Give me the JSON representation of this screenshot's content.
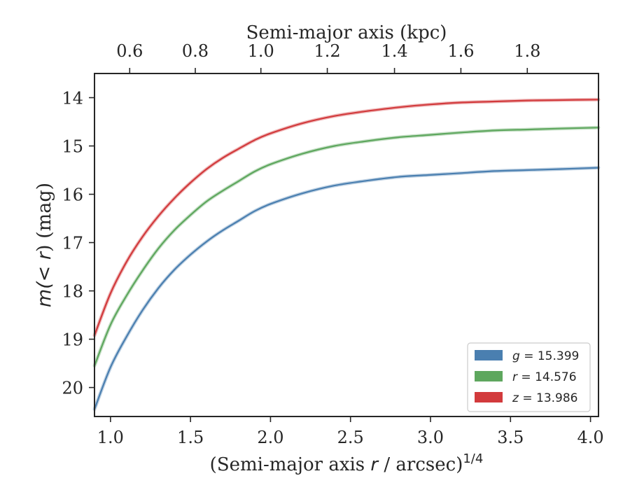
{
  "chart_data": {
    "type": "line",
    "xlabel_pre": "(Semi-major axis ",
    "xlabel_var": "r",
    "xlabel_post": " / arcsec)",
    "xlabel_sup": "1/4",
    "ylabel_pre": "m(",
    "ylabel_var": "< r",
    "ylabel_post": ") (mag)",
    "top_xlabel": "Semi-major axis (kpc)",
    "xlim": [
      0.9,
      4.05
    ],
    "ylim": [
      20.6,
      13.5
    ],
    "y_inverted": true,
    "x_ticks": [
      "1.0",
      "1.5",
      "2.0",
      "2.5",
      "3.0",
      "3.5",
      "4.0"
    ],
    "y_ticks": [
      "14",
      "15",
      "16",
      "17",
      "18",
      "19",
      "20"
    ],
    "top_ticks": [
      {
        "label": "0.6",
        "x": 1.12
      },
      {
        "label": "0.8",
        "x": 1.53
      },
      {
        "label": "1.0",
        "x": 1.94
      },
      {
        "label": "1.2",
        "x": 2.355
      },
      {
        "label": "1.4",
        "x": 2.775
      },
      {
        "label": "1.6",
        "x": 3.19
      },
      {
        "label": "1.8",
        "x": 3.605
      }
    ],
    "legend_position": "bottom-right",
    "series": [
      {
        "band": "g",
        "value": "15.399",
        "color": "#4a7fb0",
        "x": [
          0.9,
          1.0,
          1.1,
          1.2,
          1.3,
          1.4,
          1.5,
          1.6,
          1.7,
          1.8,
          1.9,
          2.0,
          2.2,
          2.4,
          2.6,
          2.8,
          3.0,
          3.2,
          3.4,
          3.6,
          3.8,
          4.05
        ],
        "y": [
          20.45,
          19.58,
          18.95,
          18.4,
          17.94,
          17.56,
          17.25,
          16.98,
          16.75,
          16.55,
          16.35,
          16.2,
          15.98,
          15.82,
          15.72,
          15.64,
          15.6,
          15.56,
          15.52,
          15.5,
          15.48,
          15.45
        ]
      },
      {
        "band": "r",
        "value": "14.576",
        "color": "#5ea75e",
        "x": [
          0.9,
          1.0,
          1.1,
          1.2,
          1.3,
          1.4,
          1.5,
          1.6,
          1.7,
          1.8,
          1.9,
          2.0,
          2.2,
          2.4,
          2.6,
          2.8,
          3.0,
          3.2,
          3.4,
          3.6,
          3.8,
          4.05
        ],
        "y": [
          19.55,
          18.7,
          18.1,
          17.58,
          17.12,
          16.74,
          16.43,
          16.15,
          15.93,
          15.73,
          15.53,
          15.38,
          15.16,
          15.0,
          14.9,
          14.82,
          14.77,
          14.72,
          14.68,
          14.66,
          14.64,
          14.62
        ]
      },
      {
        "band": "z",
        "value": "13.986",
        "color": "#d23a3c",
        "x": [
          0.9,
          1.0,
          1.1,
          1.2,
          1.3,
          1.4,
          1.5,
          1.6,
          1.7,
          1.8,
          1.9,
          2.0,
          2.2,
          2.4,
          2.6,
          2.8,
          3.0,
          3.2,
          3.4,
          3.6,
          3.8,
          4.05
        ],
        "y": [
          18.92,
          18.05,
          17.4,
          16.88,
          16.45,
          16.08,
          15.76,
          15.48,
          15.25,
          15.06,
          14.88,
          14.74,
          14.53,
          14.38,
          14.28,
          14.2,
          14.14,
          14.1,
          14.08,
          14.06,
          14.05,
          14.04
        ]
      }
    ]
  }
}
